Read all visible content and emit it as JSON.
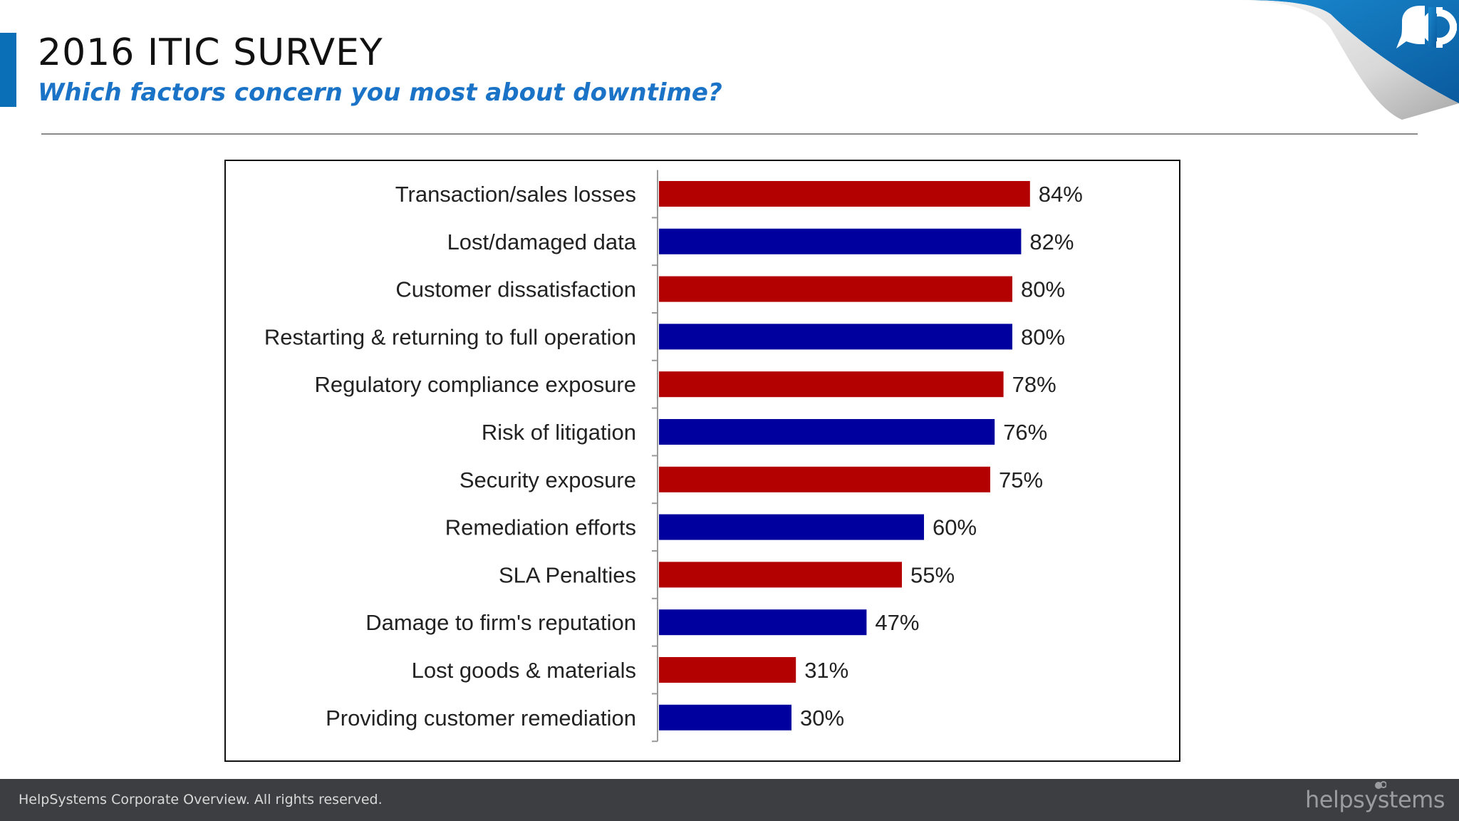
{
  "slide": {
    "title": "2016 ITIC SURVEY",
    "subtitle": "Which factors concern you most about downtime?"
  },
  "footer": {
    "copyright": "HelpSystems Corporate Overview. All rights reserved.",
    "logo_text": "helpsystems"
  },
  "colors": {
    "accent": "#0b6fb8",
    "bar_red": "#b30000",
    "bar_blue": "#00009e",
    "footer_bg": "#3d3e42"
  },
  "icons": {
    "corner": "speech-bubble-gear-logo-icon"
  },
  "chart_data": {
    "type": "bar",
    "orientation": "horizontal",
    "categories": [
      "Transaction/sales losses",
      "Lost/damaged data",
      "Customer dissatisfaction",
      "Restarting & returning to full operation",
      "Regulatory compliance exposure",
      "Risk of litigation",
      "Security exposure",
      "Remediation efforts",
      "SLA Penalties",
      "Damage to firm's reputation",
      "Lost goods & materials",
      "Providing customer remediation"
    ],
    "values": [
      84,
      82,
      80,
      80,
      78,
      76,
      75,
      60,
      55,
      47,
      31,
      30
    ],
    "data_labels": [
      "84%",
      "82%",
      "80%",
      "80%",
      "78%",
      "76%",
      "75%",
      "60%",
      "55%",
      "47%",
      "31%",
      "30%"
    ],
    "bar_colors": [
      "#b30000",
      "#00009e",
      "#b30000",
      "#00009e",
      "#b30000",
      "#00009e",
      "#b30000",
      "#00009e",
      "#b30000",
      "#00009e",
      "#b30000",
      "#00009e"
    ],
    "xlim": [
      0,
      100
    ],
    "unit": "%",
    "grid": false,
    "legend": "none"
  }
}
